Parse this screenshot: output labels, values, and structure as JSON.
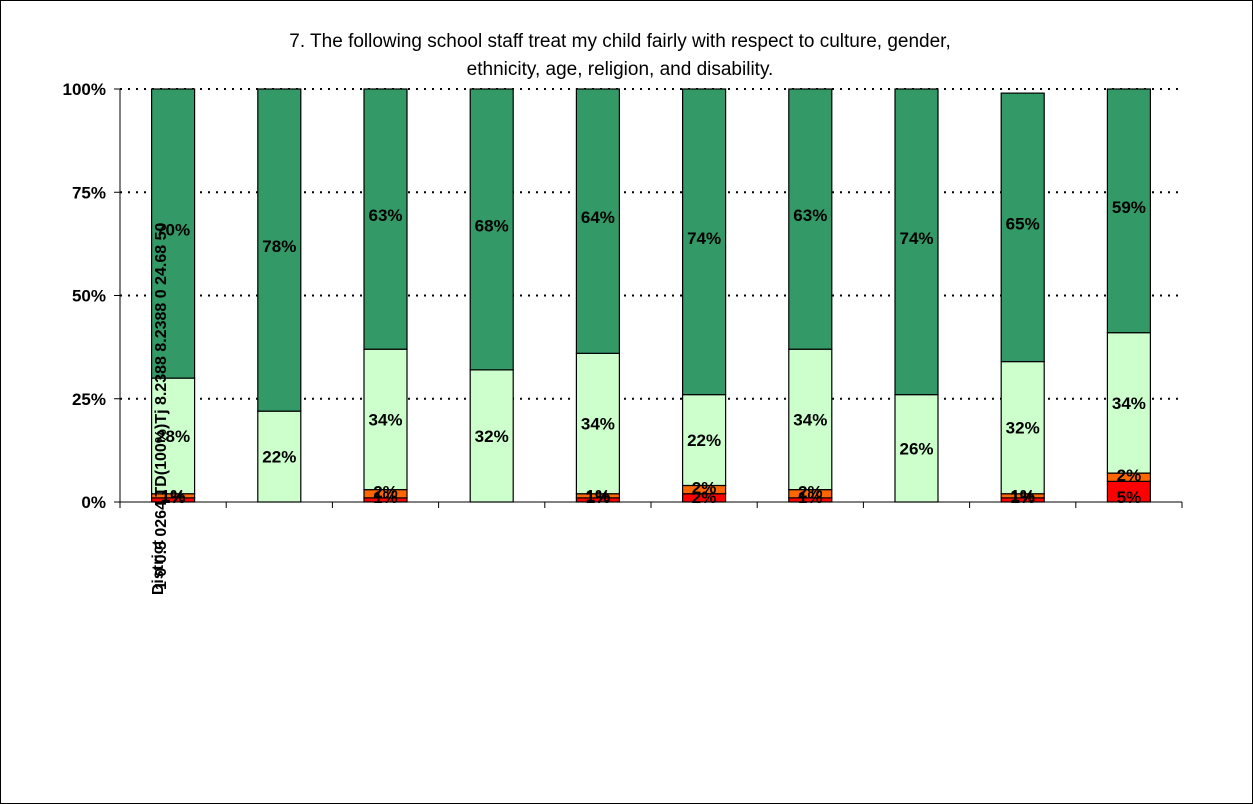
{
  "chart_data": {
    "type": "bar",
    "stacked": true,
    "title_lines": [
      "7.  The following school staff treat my child fairly with respect to culture, gender,",
      "ethnicity, age, religion, and disability."
    ],
    "artifact_text": "1 0 0.5 0264 TD(100%)Tj 8.2388 8.2388 0 24.68 50",
    "ylim": [
      0,
      100
    ],
    "yticks": [
      "0%",
      "25%",
      "50%",
      "75%",
      "100%"
    ],
    "grid": true,
    "categories": [
      "District",
      "",
      "",
      "",
      "",
      "",
      "",
      "",
      "",
      ""
    ],
    "series": [
      {
        "color": "#ff0000",
        "values": [
          1,
          0,
          1,
          0,
          1,
          2,
          1,
          0,
          1,
          5
        ]
      },
      {
        "color": "#ff6600",
        "values": [
          1,
          0,
          2,
          0,
          1,
          2,
          2,
          0,
          1,
          2
        ]
      },
      {
        "color": "#ccffcc",
        "values": [
          28,
          22,
          34,
          32,
          34,
          22,
          34,
          26,
          32,
          34
        ]
      },
      {
        "color": "#339966",
        "values": [
          70,
          78,
          63,
          68,
          64,
          74,
          63,
          74,
          65,
          59
        ]
      }
    ],
    "labels": [
      [
        "1%",
        "",
        "1%",
        "",
        "1%",
        "2%",
        "1%",
        "",
        "1%",
        "5%"
      ],
      [
        "1%",
        "",
        "2%",
        "",
        "1%",
        "2%",
        "2%",
        "",
        "1%",
        "2%"
      ],
      [
        "28%",
        "22%",
        "34%",
        "32%",
        "34%",
        "22%",
        "34%",
        "26%",
        "32%",
        "34%"
      ],
      [
        "70%",
        "78%",
        "63%",
        "68%",
        "64%",
        "74%",
        "63%",
        "74%",
        "65%",
        "59%"
      ]
    ]
  }
}
